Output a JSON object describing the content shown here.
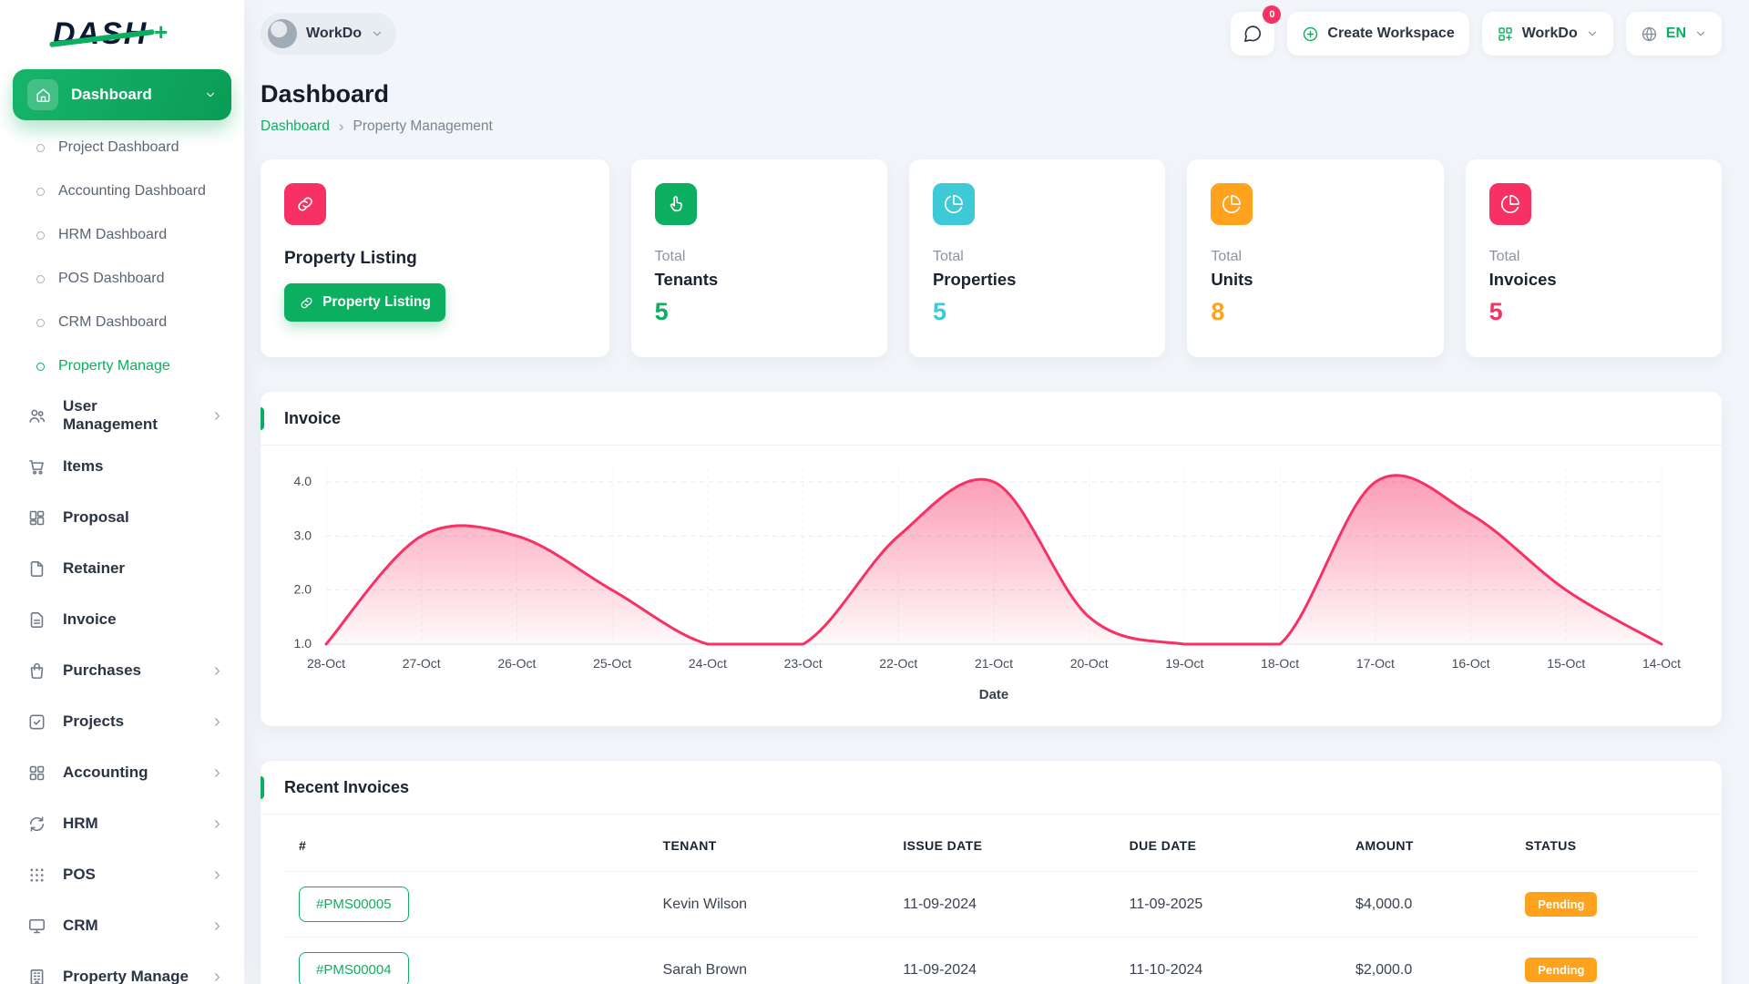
{
  "colors": {
    "primary": "#0caf60",
    "secondary": "#f73164",
    "info": "#3ec9d6",
    "warning": "#ffa21d"
  },
  "brand": {
    "logo": "DASH"
  },
  "topbar": {
    "workspace_switcher": "WorkDo",
    "messages_count": "0",
    "create_workspace": "Create Workspace",
    "app_menu": "WorkDo",
    "language": "EN"
  },
  "sidebar": {
    "dashboard_group": "Dashboard",
    "dashboard_children": [
      {
        "label": "Project Dashboard"
      },
      {
        "label": "Accounting Dashboard"
      },
      {
        "label": "HRM Dashboard"
      },
      {
        "label": "POS Dashboard"
      },
      {
        "label": "CRM Dashboard"
      },
      {
        "label": "Property Manage",
        "active": true
      }
    ],
    "groups": [
      {
        "label": "User Management",
        "icon": "users-icon",
        "expandable": true
      },
      {
        "label": "Items",
        "icon": "cart-icon",
        "expandable": false
      },
      {
        "label": "Proposal",
        "icon": "kanban-icon",
        "expandable": false
      },
      {
        "label": "Retainer",
        "icon": "document-icon",
        "expandable": false
      },
      {
        "label": "Invoice",
        "icon": "invoice-icon",
        "expandable": false
      },
      {
        "label": "Purchases",
        "icon": "bag-icon",
        "expandable": true
      },
      {
        "label": "Projects",
        "icon": "check-square-icon",
        "expandable": true
      },
      {
        "label": "Accounting",
        "icon": "grid-icon",
        "expandable": true
      },
      {
        "label": "HRM",
        "icon": "sync-icon",
        "expandable": true
      },
      {
        "label": "POS",
        "icon": "dots-grid-icon",
        "expandable": true
      },
      {
        "label": "CRM",
        "icon": "monitor-icon",
        "expandable": true
      },
      {
        "label": "Property Manage",
        "icon": "building-icon",
        "expandable": true
      }
    ]
  },
  "page": {
    "title": "Dashboard",
    "breadcrumb_home": "Dashboard",
    "breadcrumb_current": "Property Management"
  },
  "property_listing_card": {
    "title": "Property Listing",
    "button": "Property Listing",
    "icon": "link-icon",
    "icon_bg": "#f73164"
  },
  "stat_cards": [
    {
      "prefix": "Total",
      "label": "Tenants",
      "value": "5",
      "color": "#0caf60",
      "icon": "hand-icon"
    },
    {
      "prefix": "Total",
      "label": "Properties",
      "value": "5",
      "color": "#3ec9d6",
      "icon": "pie-chart-icon"
    },
    {
      "prefix": "Total",
      "label": "Units",
      "value": "8",
      "color": "#ffa21d",
      "icon": "pie-chart-icon"
    },
    {
      "prefix": "Total",
      "label": "Invoices",
      "value": "5",
      "color": "#f73164",
      "icon": "pie-chart-icon"
    }
  ],
  "invoice_chart": {
    "title": "Invoice"
  },
  "chart_data": {
    "type": "area",
    "title": "Invoice",
    "x": [
      "28-Oct",
      "27-Oct",
      "26-Oct",
      "25-Oct",
      "24-Oct",
      "23-Oct",
      "22-Oct",
      "21-Oct",
      "20-Oct",
      "19-Oct",
      "18-Oct",
      "17-Oct",
      "16-Oct",
      "15-Oct",
      "14-Oct"
    ],
    "series": [
      {
        "name": "Invoice",
        "values": [
          1,
          3,
          3,
          2,
          1,
          1,
          3,
          4,
          1.5,
          1,
          1,
          4,
          3.4,
          2,
          1
        ]
      }
    ],
    "xlabel": "Date",
    "ylabel": "",
    "ylim": [
      1,
      4
    ],
    "yticks": [
      "1.0",
      "2.0",
      "3.0",
      "4.0"
    ],
    "line_color": "#f73164",
    "grid": true,
    "legend": "none"
  },
  "recent_invoices": {
    "title": "Recent Invoices",
    "columns": [
      "#",
      "TENANT",
      "ISSUE DATE",
      "DUE DATE",
      "AMOUNT",
      "STATUS"
    ],
    "rows": [
      {
        "id": "#PMS00005",
        "tenant": "Kevin Wilson",
        "issue_date": "11-09-2024",
        "due_date": "11-09-2025",
        "amount": "$4,000.0",
        "status": "Pending"
      },
      {
        "id": "#PMS00004",
        "tenant": "Sarah Brown",
        "issue_date": "11-09-2024",
        "due_date": "11-10-2024",
        "amount": "$2,000.0",
        "status": "Pending"
      }
    ]
  }
}
